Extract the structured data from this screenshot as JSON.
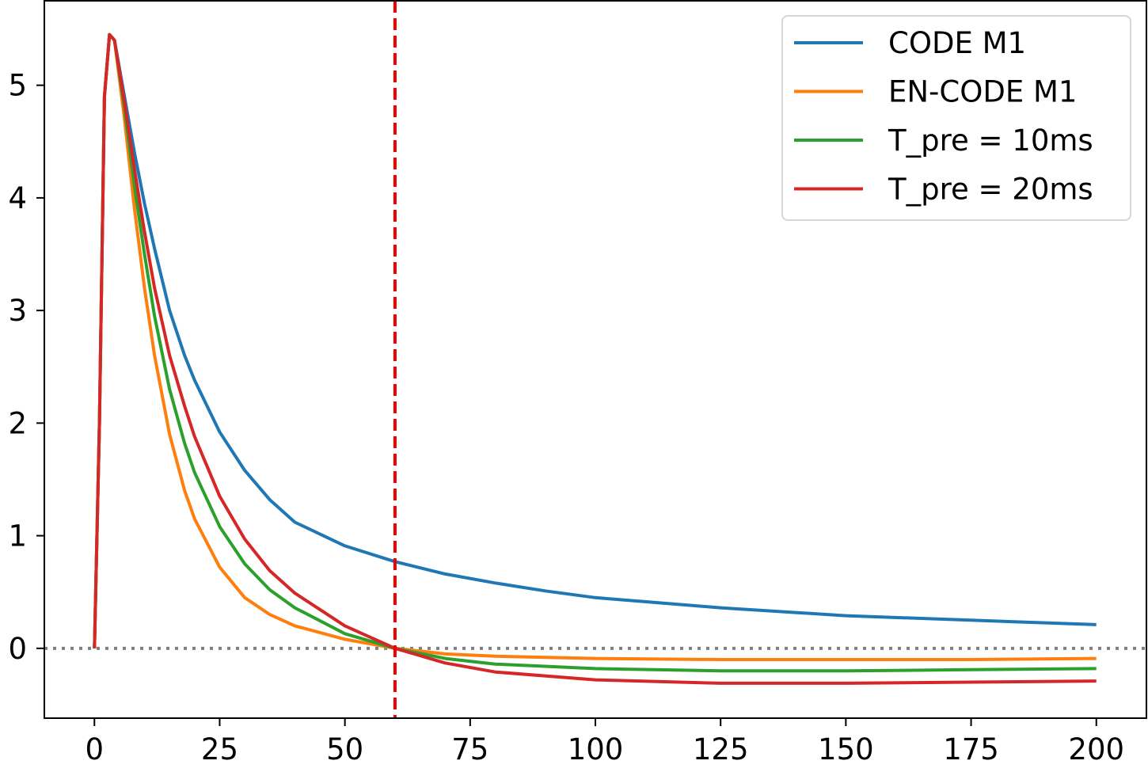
{
  "chart_data": {
    "type": "line",
    "title": "",
    "xlabel": "",
    "ylabel": "",
    "xlim": [
      -10,
      210
    ],
    "ylim": [
      -0.62,
      5.75
    ],
    "xticks": [
      0,
      25,
      50,
      75,
      100,
      125,
      150,
      175,
      200
    ],
    "yticks": [
      0,
      1,
      2,
      3,
      4,
      5
    ],
    "grid": false,
    "legend_position": "top-right",
    "reference_lines": {
      "vertical": {
        "x": 60,
        "color": "#ee0000",
        "style": "dashed"
      },
      "horizontal": {
        "y": 0,
        "color": "#808080",
        "style": "dotted"
      }
    },
    "series": [
      {
        "name": "CODE M1",
        "color": "#1f77b4",
        "points": [
          [
            0,
            0
          ],
          [
            1,
            2.0
          ],
          [
            2,
            4.9
          ],
          [
            3,
            5.45
          ],
          [
            4,
            5.4
          ],
          [
            6,
            4.9
          ],
          [
            8,
            4.4
          ],
          [
            10,
            3.95
          ],
          [
            12,
            3.55
          ],
          [
            15,
            3.0
          ],
          [
            18,
            2.6
          ],
          [
            20,
            2.38
          ],
          [
            25,
            1.92
          ],
          [
            30,
            1.58
          ],
          [
            35,
            1.32
          ],
          [
            40,
            1.12
          ],
          [
            50,
            0.91
          ],
          [
            60,
            0.77
          ],
          [
            70,
            0.66
          ],
          [
            80,
            0.58
          ],
          [
            90,
            0.51
          ],
          [
            100,
            0.45
          ],
          [
            125,
            0.36
          ],
          [
            150,
            0.29
          ],
          [
            175,
            0.25
          ],
          [
            200,
            0.21
          ]
        ]
      },
      {
        "name": "EN-CODE M1",
        "color": "#ff7f0e",
        "points": [
          [
            0,
            0
          ],
          [
            1,
            2.0
          ],
          [
            2,
            4.9
          ],
          [
            3,
            5.45
          ],
          [
            4,
            5.4
          ],
          [
            6,
            4.7
          ],
          [
            8,
            3.9
          ],
          [
            10,
            3.2
          ],
          [
            12,
            2.6
          ],
          [
            15,
            1.9
          ],
          [
            18,
            1.4
          ],
          [
            20,
            1.15
          ],
          [
            25,
            0.72
          ],
          [
            30,
            0.45
          ],
          [
            35,
            0.3
          ],
          [
            40,
            0.2
          ],
          [
            50,
            0.08
          ],
          [
            60,
            0.0
          ],
          [
            70,
            -0.05
          ],
          [
            80,
            -0.07
          ],
          [
            100,
            -0.09
          ],
          [
            125,
            -0.1
          ],
          [
            150,
            -0.1
          ],
          [
            175,
            -0.1
          ],
          [
            200,
            -0.09
          ]
        ]
      },
      {
        "name": "T_pre = 10ms",
        "color": "#2ca02c",
        "points": [
          [
            0,
            0
          ],
          [
            1,
            2.0
          ],
          [
            2,
            4.9
          ],
          [
            3,
            5.45
          ],
          [
            4,
            5.4
          ],
          [
            6,
            4.8
          ],
          [
            8,
            4.1
          ],
          [
            10,
            3.5
          ],
          [
            12,
            2.95
          ],
          [
            15,
            2.3
          ],
          [
            18,
            1.82
          ],
          [
            20,
            1.56
          ],
          [
            25,
            1.08
          ],
          [
            30,
            0.75
          ],
          [
            35,
            0.52
          ],
          [
            40,
            0.36
          ],
          [
            50,
            0.13
          ],
          [
            60,
            0.0
          ],
          [
            70,
            -0.09
          ],
          [
            80,
            -0.14
          ],
          [
            100,
            -0.18
          ],
          [
            125,
            -0.2
          ],
          [
            150,
            -0.2
          ],
          [
            175,
            -0.19
          ],
          [
            200,
            -0.18
          ]
        ]
      },
      {
        "name": "T_pre = 20ms",
        "color": "#d62728",
        "points": [
          [
            0,
            0
          ],
          [
            1,
            2.0
          ],
          [
            2,
            4.9
          ],
          [
            3,
            5.45
          ],
          [
            4,
            5.4
          ],
          [
            6,
            4.85
          ],
          [
            8,
            4.25
          ],
          [
            10,
            3.7
          ],
          [
            12,
            3.2
          ],
          [
            15,
            2.6
          ],
          [
            18,
            2.15
          ],
          [
            20,
            1.88
          ],
          [
            25,
            1.35
          ],
          [
            30,
            0.97
          ],
          [
            35,
            0.69
          ],
          [
            40,
            0.49
          ],
          [
            50,
            0.2
          ],
          [
            60,
            0.0
          ],
          [
            70,
            -0.13
          ],
          [
            80,
            -0.21
          ],
          [
            100,
            -0.28
          ],
          [
            125,
            -0.31
          ],
          [
            150,
            -0.31
          ],
          [
            175,
            -0.3
          ],
          [
            200,
            -0.29
          ]
        ]
      }
    ]
  }
}
